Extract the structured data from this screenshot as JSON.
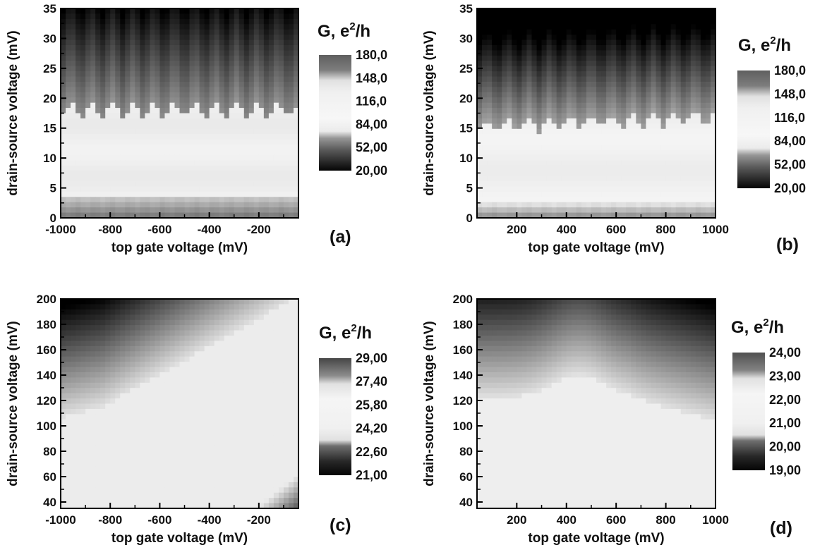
{
  "chart_data": [
    {
      "type": "heatmap",
      "panel_label": "(a)",
      "xlabel": "top gate voltage (mV)",
      "ylabel": "drain-source voltage (mV)",
      "x_ticks": [
        "-1000",
        "-800",
        "-600",
        "-400",
        "-200"
      ],
      "x_tick_values": [
        -1000,
        -800,
        -600,
        -400,
        -200
      ],
      "y_ticks": [
        "0",
        "5",
        "10",
        "15",
        "20",
        "25",
        "30",
        "35"
      ],
      "y_tick_values": [
        0,
        5,
        10,
        15,
        20,
        25,
        30,
        35
      ],
      "xlim": [
        -1000,
        -40
      ],
      "ylim": [
        0,
        35
      ],
      "colorbar": {
        "title": "G, e",
        "title_sup": "2",
        "title_suffix": "/h",
        "labels": [
          "180,0",
          "148,0",
          "116,0",
          "84,00",
          "52,00",
          "20,00"
        ],
        "range": [
          20,
          180
        ]
      },
      "description_values": {
        "x": [
          -1000,
          -800,
          -600,
          -400,
          -200,
          -40
        ],
        "y": [
          0,
          3,
          5,
          10,
          15,
          18,
          20,
          25,
          30,
          35
        ],
        "z": [
          [
            110,
            110,
            110,
            110,
            110,
            110
          ],
          [
            115,
            115,
            115,
            115,
            115,
            115
          ],
          [
            96,
            96,
            96,
            96,
            96,
            96
          ],
          [
            100,
            100,
            100,
            100,
            100,
            100
          ],
          [
            104,
            104,
            104,
            104,
            104,
            104
          ],
          [
            108,
            108,
            108,
            108,
            108,
            108
          ],
          [
            150,
            150,
            150,
            150,
            150,
            150
          ],
          [
            60,
            60,
            60,
            60,
            60,
            60
          ],
          [
            40,
            40,
            40,
            40,
            40,
            40
          ],
          [
            25,
            25,
            25,
            25,
            25,
            25
          ]
        ]
      }
    },
    {
      "type": "heatmap",
      "panel_label": "(b)",
      "xlabel": "top gate voltage (mV)",
      "ylabel": "drain-source voltage (mV)",
      "x_ticks": [
        "200",
        "400",
        "600",
        "800",
        "1000"
      ],
      "x_tick_values": [
        200,
        400,
        600,
        800,
        1000
      ],
      "y_ticks": [
        "0",
        "5",
        "10",
        "15",
        "20",
        "25",
        "30",
        "35"
      ],
      "y_tick_values": [
        0,
        5,
        10,
        15,
        20,
        25,
        30,
        35
      ],
      "xlim": [
        40,
        1000
      ],
      "ylim": [
        0,
        35
      ],
      "colorbar": {
        "title": "G, e",
        "title_sup": "2",
        "title_suffix": "/h",
        "labels": [
          "180,0",
          "148,0",
          "116,0",
          "84,00",
          "52,00",
          "20,00"
        ],
        "range": [
          20,
          180
        ]
      }
    },
    {
      "type": "heatmap",
      "panel_label": "(c)",
      "xlabel": "top gate voltage (mV)",
      "ylabel": "drain-source voltage (mV)",
      "x_ticks": [
        "-1000",
        "-800",
        "-600",
        "-400",
        "-200"
      ],
      "x_tick_values": [
        -1000,
        -800,
        -600,
        -400,
        -200
      ],
      "y_ticks": [
        "40",
        "60",
        "80",
        "100",
        "120",
        "140",
        "160",
        "180",
        "200"
      ],
      "y_tick_values": [
        40,
        60,
        80,
        100,
        120,
        140,
        160,
        180,
        200
      ],
      "xlim": [
        -1000,
        -40
      ],
      "ylim": [
        35,
        200
      ],
      "colorbar": {
        "title": "G, e",
        "title_sup": "2",
        "title_suffix": "/h",
        "labels": [
          "29,00",
          "27,40",
          "25,80",
          "24,20",
          "22,60",
          "21,00"
        ],
        "range": [
          21,
          29
        ]
      }
    },
    {
      "type": "heatmap",
      "panel_label": "(d)",
      "xlabel": "top gate voltage (mV)",
      "ylabel": "drain-source voltage (mV)",
      "x_ticks": [
        "200",
        "400",
        "600",
        "800",
        "1000"
      ],
      "x_tick_values": [
        200,
        400,
        600,
        800,
        1000
      ],
      "y_ticks": [
        "40",
        "60",
        "80",
        "100",
        "120",
        "140",
        "160",
        "180",
        "200"
      ],
      "y_tick_values": [
        40,
        60,
        80,
        100,
        120,
        140,
        160,
        180,
        200
      ],
      "xlim": [
        40,
        1000
      ],
      "ylim": [
        35,
        200
      ],
      "colorbar": {
        "title": "G, e",
        "title_sup": "2",
        "title_suffix": "/h",
        "labels": [
          "24,00",
          "23,00",
          "22,00",
          "21,00",
          "20,00",
          "19,00"
        ],
        "range": [
          19,
          24
        ]
      }
    }
  ]
}
